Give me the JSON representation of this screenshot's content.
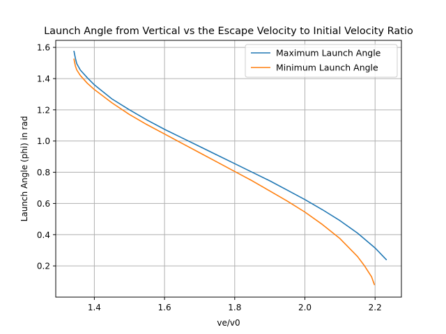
{
  "chart_data": {
    "type": "line",
    "title": "Launch Angle from Vertical vs the Escape Velocity to Initial Velocity Ratio",
    "xlabel": "ve/v0",
    "ylabel": "Launch Angle (phi) in rad",
    "xlim": [
      1.29,
      2.275
    ],
    "ylim": [
      0.0,
      1.645
    ],
    "xticks": [
      "1.4",
      "1.6",
      "1.8",
      "2.0",
      "2.2"
    ],
    "xtick_values": [
      1.4,
      1.6,
      1.8,
      2.0,
      2.2
    ],
    "yticks": [
      "0.2",
      "0.4",
      "0.6",
      "0.8",
      "1.0",
      "1.2",
      "1.4",
      "1.6"
    ],
    "ytick_values": [
      0.2,
      0.4,
      0.6,
      0.8,
      1.0,
      1.2,
      1.4,
      1.6
    ],
    "grid": true,
    "legend_position": "top-right",
    "series": [
      {
        "name": "Maximum Launch Angle",
        "color": "#1f77b4",
        "x": [
          1.342,
          1.346,
          1.35,
          1.36,
          1.38,
          1.4,
          1.45,
          1.5,
          1.55,
          1.6,
          1.65,
          1.7,
          1.75,
          1.8,
          1.85,
          1.9,
          1.95,
          2.0,
          2.05,
          2.1,
          2.15,
          2.2,
          2.232
        ],
        "y": [
          1.575,
          1.53,
          1.495,
          1.455,
          1.405,
          1.36,
          1.27,
          1.2,
          1.135,
          1.075,
          1.02,
          0.965,
          0.91,
          0.855,
          0.8,
          0.745,
          0.685,
          0.625,
          0.56,
          0.49,
          0.41,
          0.315,
          0.24
        ]
      },
      {
        "name": "Minimum Launch Angle",
        "color": "#ff7f0e",
        "x": [
          1.342,
          1.346,
          1.35,
          1.36,
          1.38,
          1.4,
          1.45,
          1.5,
          1.55,
          1.6,
          1.65,
          1.7,
          1.75,
          1.8,
          1.85,
          1.9,
          1.95,
          2.0,
          2.05,
          2.1,
          2.15,
          2.17,
          2.19,
          2.198
        ],
        "y": [
          1.525,
          1.48,
          1.455,
          1.42,
          1.37,
          1.33,
          1.245,
          1.17,
          1.105,
          1.045,
          0.985,
          0.925,
          0.865,
          0.805,
          0.745,
          0.68,
          0.615,
          0.545,
          0.465,
          0.375,
          0.26,
          0.2,
          0.13,
          0.08
        ]
      }
    ]
  }
}
